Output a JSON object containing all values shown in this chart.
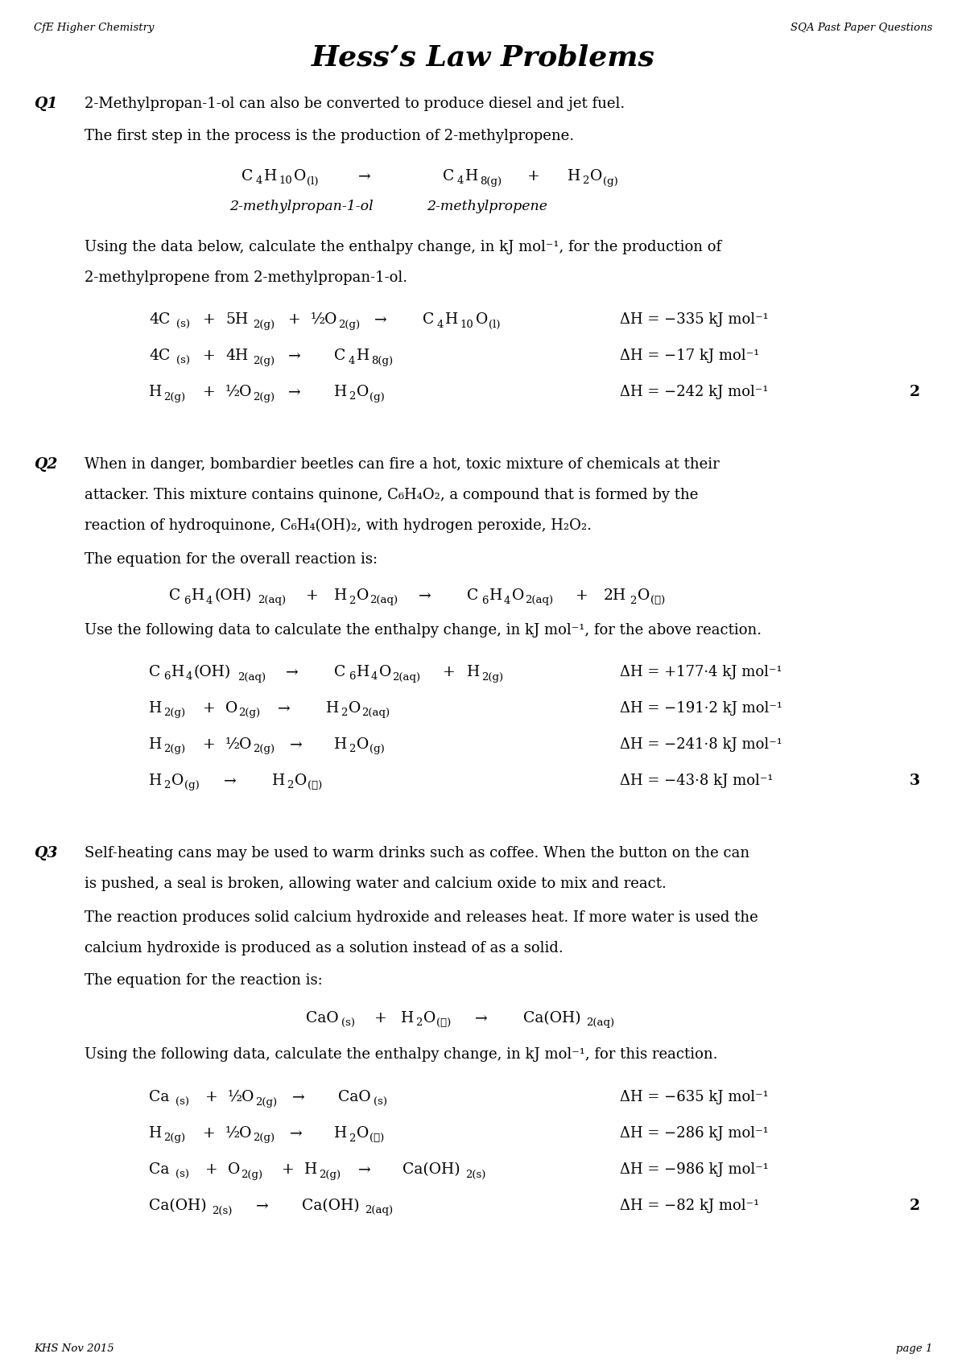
{
  "title": "Hess’s Law Problems",
  "header_left": "CfE Higher Chemistry",
  "header_right": "SQA Past Paper Questions",
  "footer_left": "KHS Nov 2015",
  "footer_right": "page 1",
  "bg_color": "#ffffff",
  "font_color": "#000000"
}
